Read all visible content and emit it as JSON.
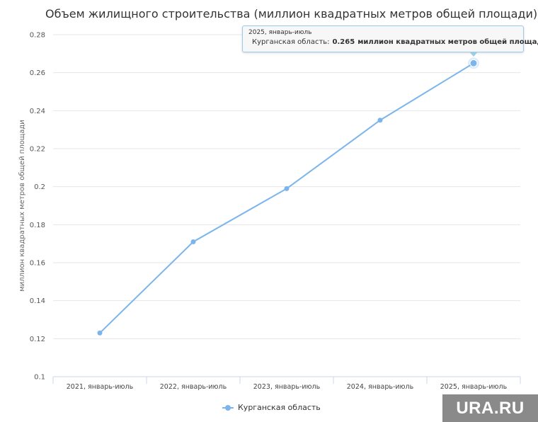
{
  "page": {
    "title": "Объем жилищного строительства (миллион квадратных метров общей площади)",
    "watermark": "URA.RU"
  },
  "colors": {
    "series": "#7cb5ec",
    "grid": "#e6e6e6",
    "axis": "#ccd6eb",
    "tooltip_border": "#9ccbe8",
    "watermark_bg": "#8a8a8a"
  },
  "tooltip": {
    "header": "2025, январь-июль",
    "series_name": "Курганская область:",
    "value": "0.265",
    "unit": "миллион квадратных метров общей площади"
  },
  "chart_data": {
    "type": "line",
    "title": "Объем жилищного строительства (миллион квадратных метров общей площади)",
    "xlabel": "",
    "ylabel": "миллион квадратных метров общей площади",
    "categories": [
      "2021, январь-июль",
      "2022, январь-июль",
      "2023, январь-июль",
      "2024, январь-июль",
      "2025, январь-июль"
    ],
    "series": [
      {
        "name": "Курганская область",
        "values": [
          0.123,
          0.171,
          0.199,
          0.235,
          0.265
        ]
      }
    ],
    "ylim": [
      0.1,
      0.28
    ],
    "yticks": [
      "0.1",
      "0.12",
      "0.14",
      "0.16",
      "0.18",
      "0.2",
      "0.22",
      "0.24",
      "0.26",
      "0.28"
    ],
    "grid": true,
    "legend": "bottom-center",
    "highlighted_category": "2025, январь-июль"
  }
}
